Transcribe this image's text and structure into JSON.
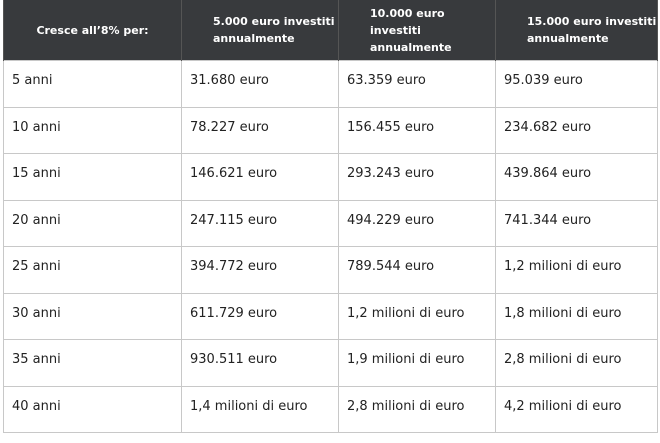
{
  "table": {
    "header": [
      "Cresce all’8% per:",
      "5.000 euro investiti annualmente",
      "10.000 euro investiti annualmente",
      "15.000 euro investiti annualmente"
    ],
    "rows": [
      [
        "5 anni",
        "31.680 euro",
        "63.359 euro",
        "95.039 euro"
      ],
      [
        "10 anni",
        "78.227 euro",
        "156.455 euro",
        "234.682 euro"
      ],
      [
        "15 anni",
        "146.621 euro",
        "293.243 euro",
        "439.864 euro"
      ],
      [
        "20 anni",
        "247.115 euro",
        "494.229 euro",
        "741.344 euro"
      ],
      [
        "25 anni",
        "394.772 euro",
        "789.544 euro",
        "1,2 milioni di euro"
      ],
      [
        "30 anni",
        "611.729 euro",
        "1,2 milioni di euro",
        "1,8 milioni di euro"
      ],
      [
        "35 anni",
        "930.511 euro",
        "1,9 milioni di euro",
        "2,8 milioni di euro"
      ],
      [
        "40 anni",
        "1,4 milioni di euro",
        "2,8 milioni di euro",
        "4,2 milioni di euro"
      ]
    ]
  }
}
